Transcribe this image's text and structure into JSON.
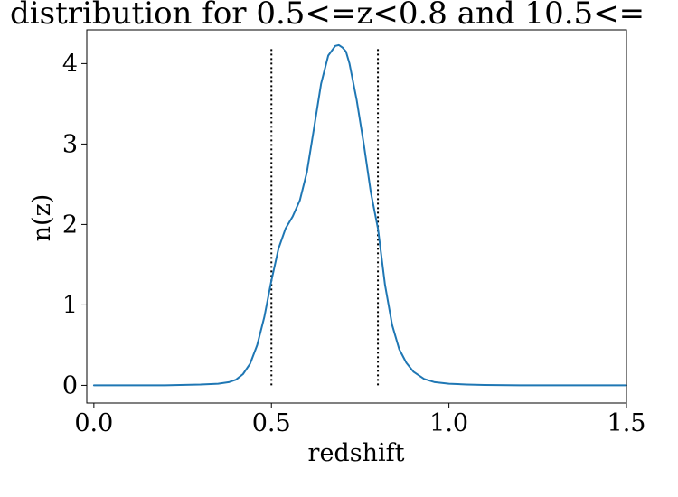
{
  "chart_data": {
    "type": "line",
    "title": "distribution for 0.5<=z<0.8 and 10.5<=",
    "xlabel": "redshift",
    "ylabel": "n(z)",
    "xlim": [
      -0.02,
      1.5
    ],
    "ylim": [
      -0.22,
      4.42
    ],
    "xticks": [
      {
        "value": 0.0,
        "label": "0.0"
      },
      {
        "value": 0.5,
        "label": "0.5"
      },
      {
        "value": 1.0,
        "label": "1.0"
      },
      {
        "value": 1.5,
        "label": "1.5"
      }
    ],
    "yticks": [
      {
        "value": 0,
        "label": "0"
      },
      {
        "value": 1,
        "label": "1"
      },
      {
        "value": 2,
        "label": "2"
      },
      {
        "value": 3,
        "label": "3"
      },
      {
        "value": 4,
        "label": "4"
      }
    ],
    "grid": false,
    "series": [
      {
        "color": "#1f77b4",
        "x": [
          0.0,
          0.1,
          0.2,
          0.3,
          0.35,
          0.38,
          0.4,
          0.42,
          0.44,
          0.46,
          0.48,
          0.5,
          0.52,
          0.54,
          0.56,
          0.58,
          0.6,
          0.62,
          0.64,
          0.66,
          0.68,
          0.69,
          0.7,
          0.71,
          0.72,
          0.74,
          0.76,
          0.78,
          0.8,
          0.82,
          0.84,
          0.86,
          0.88,
          0.9,
          0.93,
          0.96,
          1.0,
          1.05,
          1.1,
          1.2,
          1.3,
          1.4,
          1.5
        ],
        "y": [
          0.0,
          0.0,
          0.0,
          0.01,
          0.02,
          0.04,
          0.07,
          0.14,
          0.27,
          0.5,
          0.85,
          1.3,
          1.7,
          1.95,
          2.1,
          2.3,
          2.65,
          3.2,
          3.75,
          4.1,
          4.22,
          4.23,
          4.2,
          4.15,
          4.0,
          3.55,
          3.0,
          2.4,
          1.95,
          1.25,
          0.75,
          0.45,
          0.28,
          0.17,
          0.08,
          0.04,
          0.02,
          0.01,
          0.005,
          0.0,
          0.0,
          0.0,
          0.0
        ]
      }
    ],
    "vlines": [
      {
        "x": 0.5,
        "ymin": 0,
        "ymax": 4.2,
        "style": "dotted",
        "color": "#000000"
      },
      {
        "x": 0.8,
        "ymin": 0,
        "ymax": 4.2,
        "style": "dotted",
        "color": "#000000"
      }
    ]
  }
}
